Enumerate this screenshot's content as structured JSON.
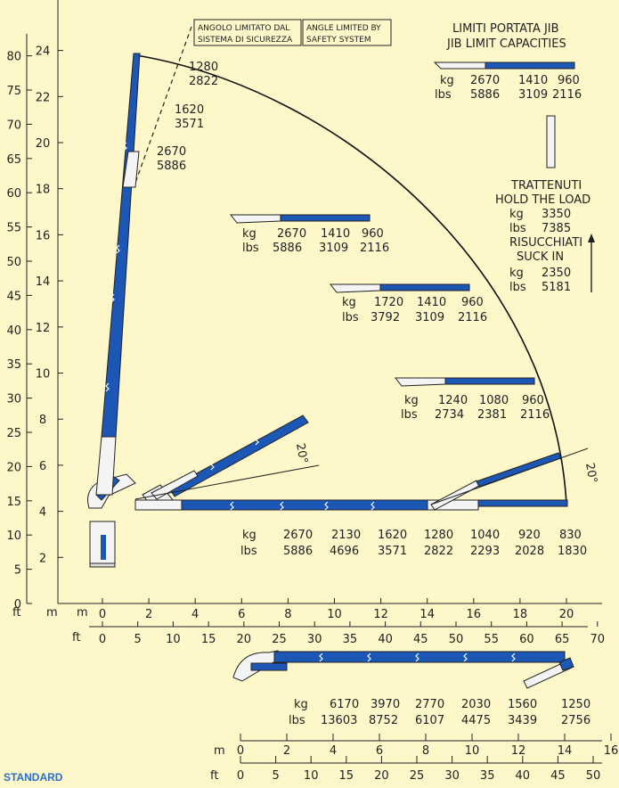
{
  "colors": {
    "background": "#fdf7c9",
    "boom_blue": "#1d57b6",
    "boom_white": "#f4f4f4",
    "line": "#222222",
    "standard_label": "#2a6fc9"
  },
  "axes": {
    "ft_left_ticks": [
      "0",
      "5",
      "10",
      "15",
      "20",
      "25",
      "30",
      "35",
      "40",
      "45",
      "50",
      "55",
      "60",
      "65",
      "70",
      "75",
      "80"
    ],
    "m_left_ticks": [
      "2",
      "4",
      "6",
      "8",
      "10",
      "12",
      "14",
      "16",
      "18",
      "20",
      "22",
      "24"
    ],
    "corner_ft": "ft",
    "corner_m": "m",
    "bottom_m_label": "m",
    "bottom_m_ticks": [
      "0",
      "2",
      "4",
      "6",
      "8",
      "10",
      "12",
      "14",
      "16",
      "18",
      "20"
    ],
    "bottom_ft_label": "ft",
    "bottom_ft_ticks": [
      "0",
      "5",
      "10",
      "15",
      "20",
      "25",
      "30",
      "35",
      "40",
      "45",
      "50",
      "55",
      "60",
      "65",
      "70"
    ]
  },
  "safety_box": {
    "it": [
      "ANGOLO LIMITATO DAL",
      "SISTEMA DI SICUREZZA"
    ],
    "en": [
      "ANGLE LIMITED BY",
      "SAFETY SYSTEM"
    ]
  },
  "jib_limit": {
    "title_it": "LIMITI PORTATA JIB",
    "title_en": "JIB LIMIT CAPACITIES",
    "kg": [
      "kg",
      "2670",
      "1410",
      "960"
    ],
    "lbs": [
      "lbs",
      "5886",
      "3109",
      "2116"
    ]
  },
  "hold_block": {
    "trattenuti": "TRATTENUTI",
    "hold": "HOLD THE LOAD",
    "hold_kg": [
      "kg",
      "3350"
    ],
    "hold_lbs": [
      "lbs",
      "7385"
    ],
    "risucchiati": "RISUCCHIATI",
    "suck": "SUCK IN",
    "suck_kg": [
      "kg",
      "2350"
    ],
    "suck_lbs": [
      "lbs",
      "5181"
    ]
  },
  "arc_labels": [
    {
      "kg": "1280",
      "lbs": "2822"
    },
    {
      "kg": "1620",
      "lbs": "3571"
    },
    {
      "kg": "2670",
      "lbs": "5886"
    }
  ],
  "config_16m": {
    "kg": [
      "kg",
      "2670",
      "1410",
      "960"
    ],
    "lbs": [
      "lbs",
      "5886",
      "3109",
      "2116"
    ]
  },
  "config_14m": {
    "kg": [
      "kg",
      "1720",
      "1410",
      "960"
    ],
    "lbs": [
      "lbs",
      "3792",
      "3109",
      "2116"
    ]
  },
  "config_10m": {
    "kg": [
      "kg",
      "1240",
      "1080",
      "960"
    ],
    "lbs": [
      "lbs",
      "2734",
      "2381",
      "2116"
    ]
  },
  "angle_label": "20°",
  "main_row": {
    "kg": [
      "kg",
      "2670",
      "2130",
      "1620",
      "1280",
      "1040",
      "920",
      "830"
    ],
    "lbs": [
      "lbs",
      "5886",
      "4696",
      "3571",
      "2822",
      "2293",
      "2028",
      "1830"
    ]
  },
  "bottom_config": {
    "kg": [
      "kg",
      "6170",
      "3970",
      "2770",
      "2030",
      "1560",
      "1250"
    ],
    "lbs": [
      "lbs",
      "13603",
      "8752",
      "6107",
      "4475",
      "3439",
      "2756"
    ]
  },
  "bottom_axes": {
    "m_label": "m",
    "m_ticks": [
      "0",
      "2",
      "4",
      "6",
      "8",
      "10",
      "12",
      "14",
      "16"
    ],
    "ft_label": "ft",
    "ft_ticks": [
      "0",
      "5",
      "10",
      "15",
      "20",
      "25",
      "30",
      "35",
      "40",
      "45",
      "50"
    ]
  },
  "standard_label": "STANDARD"
}
